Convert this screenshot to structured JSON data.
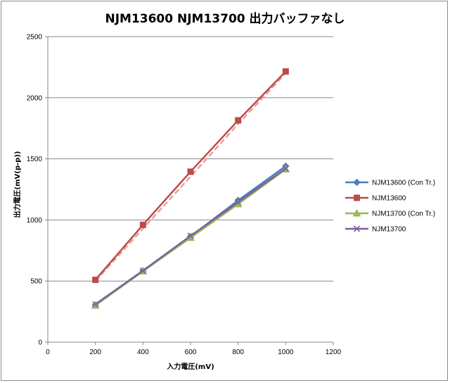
{
  "chart_data": {
    "type": "line",
    "title": "NJM13600 NJM13700 出力バッファなし",
    "xlabel": "入力電圧(mV)",
    "ylabel": "出力電圧(mV(p-p))",
    "xlim": [
      0,
      1200
    ],
    "ylim": [
      0,
      2500
    ],
    "xticks": [
      "0",
      "200",
      "400",
      "600",
      "800",
      "1000",
      "1200"
    ],
    "yticks": [
      "0",
      "500",
      "1000",
      "1500",
      "2000",
      "2500"
    ],
    "grid": "horizontal",
    "legend_position": "right",
    "series": [
      {
        "name": "NJM13600 (Con Tr.)",
        "color": "#4a7ebb",
        "marker": "diamond",
        "dash": "solid",
        "x": [
          200,
          400,
          600,
          800,
          1000
        ],
        "y": [
          305,
          585,
          865,
          1160,
          1440
        ]
      },
      {
        "name": "NJM13600",
        "color": "#be4b48",
        "marker": "square",
        "dash": "solid",
        "x": [
          200,
          400,
          600,
          800,
          1000
        ],
        "y": [
          510,
          960,
          1395,
          1815,
          2215
        ]
      },
      {
        "name": "NJM13700 (Con Tr.)",
        "color": "#98b954",
        "marker": "triangle",
        "dash": "solid",
        "x": [
          200,
          400,
          600,
          800,
          1000
        ],
        "y": [
          300,
          580,
          855,
          1130,
          1415
        ]
      },
      {
        "name": "NJM13700",
        "color": "#7d60a0",
        "marker": "x",
        "dash": "solid",
        "x": [
          200,
          400,
          600,
          800,
          1000
        ],
        "y": [
          310,
          585,
          870,
          1145,
          1420
        ]
      },
      {
        "name": "",
        "color": "#e2a09e",
        "marker": "none",
        "dash": "dashed",
        "x": [
          200,
          400,
          600,
          800,
          1000
        ],
        "y": [
          500,
          930,
          1355,
          1785,
          2200
        ]
      }
    ]
  }
}
